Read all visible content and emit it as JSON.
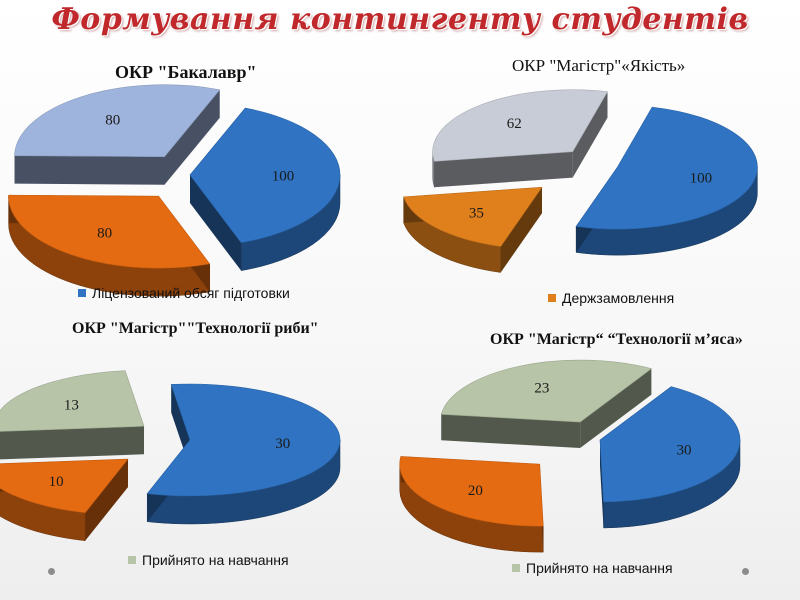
{
  "slide": {
    "title": "Формування контингенту студентів"
  },
  "colors": {
    "title": "#c0282b",
    "blue": "#2f73c2",
    "orange": "#e46b12",
    "lightblue": "#9fb4dc",
    "lightgray": "#c8ccd6",
    "sage": "#b7c4a7"
  },
  "chart_data": [
    {
      "type": "pie",
      "title": "ОКР \"Бакалавр\"",
      "legend": [
        "Ліцензований обсяг підготовки"
      ],
      "legend_position": "bottom",
      "slices": [
        {
          "value": 100,
          "color": "#2f73c2"
        },
        {
          "value": 80,
          "color": "#e46b12"
        },
        {
          "value": 80,
          "color": "#9fb4dc"
        }
      ]
    },
    {
      "type": "pie",
      "title": "ОКР \"Магістр\"«Якість»",
      "legend": [
        "Держзамовлення"
      ],
      "legend_position": "bottom",
      "slices": [
        {
          "value": 100,
          "color": "#2f73c2"
        },
        {
          "value": 35,
          "color": "#e0801d"
        },
        {
          "value": 62,
          "color": "#c8ccd6"
        }
      ]
    },
    {
      "type": "pie",
      "title": "ОКР \"Магістр\"\"Технології риби\"",
      "legend": [
        "Прийнято на навчання"
      ],
      "legend_position": "bottom",
      "slices": [
        {
          "value": 30,
          "color": "#2f73c2"
        },
        {
          "value": 10,
          "color": "#e46b12"
        },
        {
          "value": 13,
          "color": "#b7c4a7"
        }
      ]
    },
    {
      "type": "pie",
      "title": "ОКР \"Магістр“ “Технології м’яса»",
      "legend": [
        "Прийнято на навчання"
      ],
      "legend_position": "bottom",
      "slices": [
        {
          "value": 30,
          "color": "#2f73c2"
        },
        {
          "value": 20,
          "color": "#e46b12"
        },
        {
          "value": 23,
          "color": "#b7c4a7"
        }
      ]
    }
  ]
}
